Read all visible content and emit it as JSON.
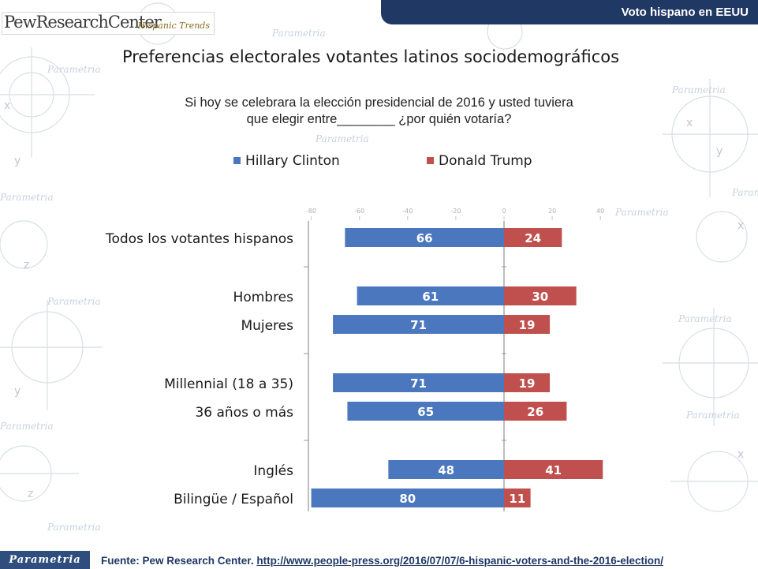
{
  "header": {
    "section_label": "Voto hispano en EEUU",
    "logo_main": "PewResearchCenter",
    "logo_sub": "Hispanic Trends"
  },
  "watermark_text": "Parametria",
  "title": "Preferencias electorales votantes latinos sociodemográficos",
  "subtitle_line1": "Si hoy se celebrara la elección presidencial de 2016 y usted tuviera",
  "subtitle_line2": "que elegir entre________ ¿por quién votaría?",
  "chart_data": {
    "type": "bar",
    "orientation": "horizontal-diverging",
    "categories": [
      "Todos los votantes hispanos",
      "Hombres",
      "Mujeres",
      "Millennial (18 a 35)",
      "36 años o más",
      "Inglés",
      "Bilingüe / Español"
    ],
    "series": [
      {
        "name": "Hillary Clinton",
        "color": "#4a77be",
        "values": [
          66,
          61,
          71,
          71,
          65,
          48,
          80
        ]
      },
      {
        "name": "Donald Trump",
        "color": "#c0504d",
        "values": [
          24,
          30,
          19,
          19,
          26,
          41,
          11
        ]
      }
    ],
    "axis_ticks": [
      -80,
      -60,
      -40,
      -20,
      0,
      20,
      40
    ],
    "xlim": [
      -80,
      60
    ],
    "legend_position": "top",
    "grid": false
  },
  "footer": {
    "brand": "Parametria",
    "source_label": "Fuente: Pew Research Center.",
    "source_url": "http://www.people-press.org/2016/07/07/6-hispanic-voters-and-the-2016-election/"
  }
}
